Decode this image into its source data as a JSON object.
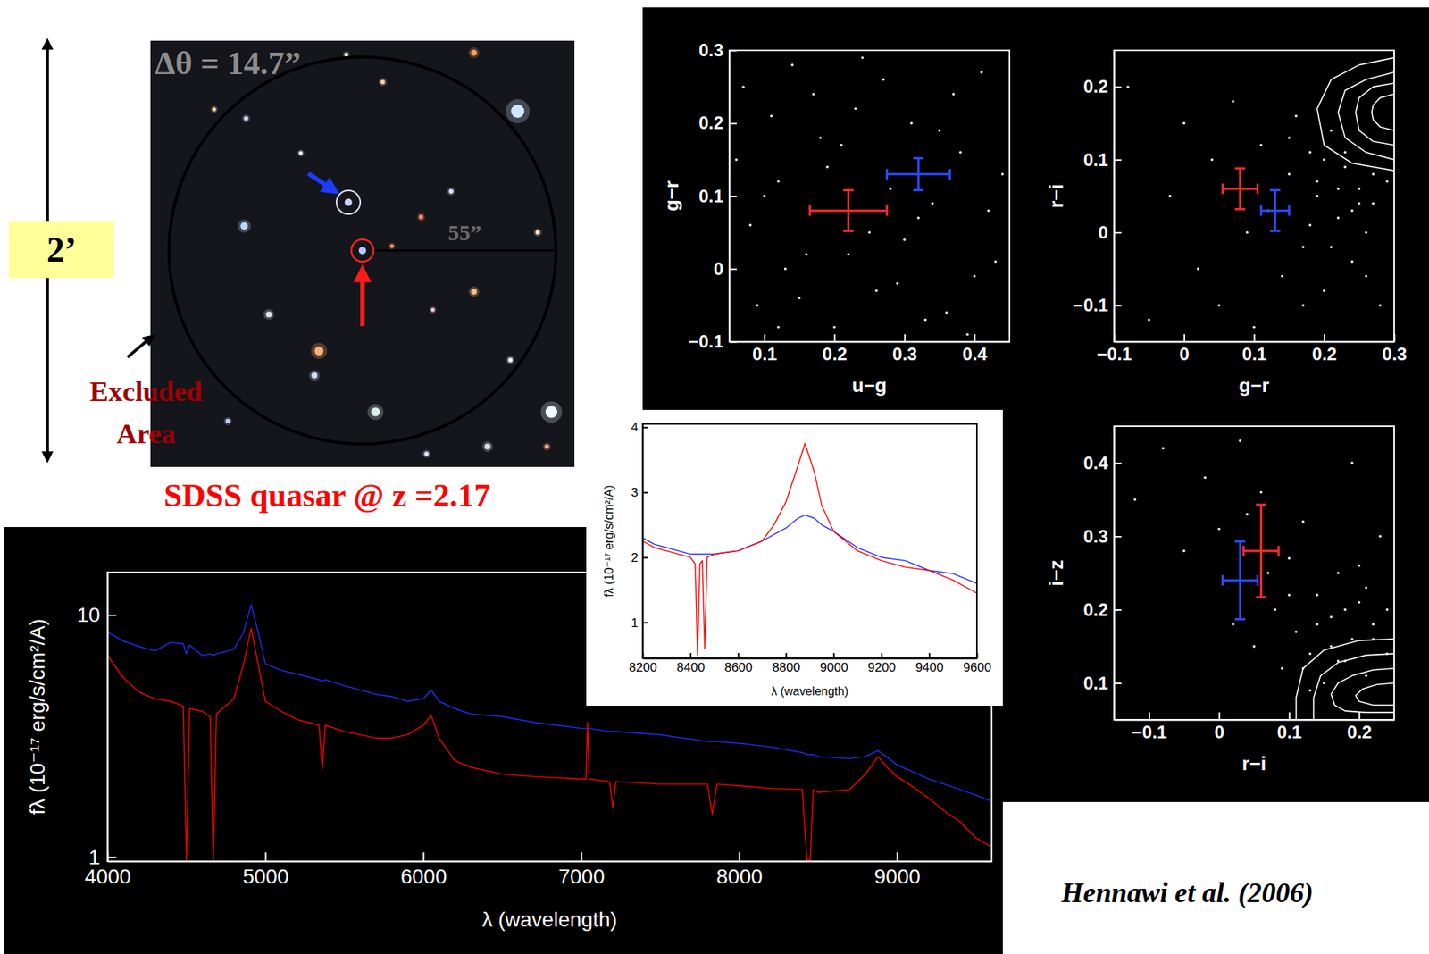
{
  "chart_data": [
    {
      "type": "scatter",
      "xlabel": "u−g",
      "ylabel": "g−r",
      "xlim": [
        0.05,
        0.45
      ],
      "ylim": [
        -0.1,
        0.3
      ],
      "xticks": [
        0.1,
        0.2,
        0.3,
        0.4
      ],
      "yticks": [
        {
          "value": -0.1,
          "label": "−0.1"
        },
        0,
        0.1,
        0.2,
        0.3
      ],
      "series": [
        {
          "type": "scatter",
          "color": "#ffffff",
          "x": [
            0.07,
            0.09,
            0.12,
            0.14,
            0.16,
            0.18,
            0.2,
            0.23,
            0.25,
            0.27,
            0.29,
            0.31,
            0.34,
            0.36,
            0.38,
            0.41,
            0.43,
            0.08,
            0.11,
            0.15,
            0.19,
            0.24,
            0.28,
            0.33,
            0.37,
            0.42,
            0.06,
            0.13,
            0.17,
            0.21,
            0.26,
            0.3,
            0.35,
            0.39,
            0.44,
            0.1,
            0.22,
            0.32,
            0.4,
            0.12
          ],
          "values": [
            0.25,
            -0.05,
            0.12,
            0.28,
            0.02,
            0.18,
            -0.08,
            0.22,
            0.05,
            0.26,
            -0.02,
            0.2,
            0.09,
            -0.06,
            0.16,
            0.27,
            0.01,
            0.06,
            0.21,
            -0.04,
            0.14,
            0.29,
            0.11,
            -0.07,
            0.24,
            0.08,
            0.15,
            0.0,
            0.24,
            0.17,
            -0.03,
            0.04,
            0.19,
            -0.09,
            0.13,
            0.1,
            0.02,
            0.07,
            -0.01,
            -0.08
          ]
        },
        {
          "type": "errorbar",
          "color": "#ff2a2a",
          "x": [
            0.22
          ],
          "values": [
            0.08
          ],
          "x_error": [
            0.055
          ],
          "error": [
            0.028
          ]
        },
        {
          "type": "errorbar",
          "color": "#2a4bff",
          "x": [
            0.32
          ],
          "values": [
            0.13
          ],
          "x_error": [
            0.045
          ],
          "error": [
            0.022
          ]
        }
      ]
    },
    {
      "type": "scatter",
      "xlabel": "g−r",
      "ylabel": "r−i",
      "xlim": [
        -0.1,
        0.3
      ],
      "ylim": [
        -0.15,
        0.25
      ],
      "xticks": [
        {
          "value": -0.1,
          "label": "−0.1"
        },
        0,
        0.1,
        0.2,
        0.3
      ],
      "yticks": [
        {
          "value": -0.1,
          "label": "−0.1"
        },
        0,
        0.1,
        0.2
      ],
      "series": [
        {
          "type": "scatter",
          "color": "#ffffff",
          "x": [
            -0.08,
            -0.05,
            -0.02,
            0.0,
            0.02,
            0.04,
            0.05,
            0.07,
            0.09,
            0.1,
            0.11,
            0.12,
            0.14,
            0.15,
            0.16,
            0.17,
            0.18,
            0.19,
            0.2,
            0.21,
            0.22,
            0.23,
            0.24,
            0.25,
            0.26,
            0.27,
            0.28,
            0.29,
            0.15,
            0.18,
            0.2,
            0.22,
            0.24,
            0.26,
            0.17,
            0.19,
            0.21,
            0.23,
            0.25,
            0.27
          ],
          "values": [
            0.2,
            -0.12,
            0.05,
            0.15,
            -0.05,
            0.1,
            -0.1,
            0.18,
            0.0,
            -0.13,
            0.12,
            0.03,
            -0.06,
            0.08,
            0.16,
            -0.02,
            0.11,
            0.05,
            -0.08,
            0.14,
            0.02,
            0.09,
            -0.04,
            0.06,
            0.0,
            0.04,
            -0.1,
            0.07,
            0.13,
            0.01,
            0.1,
            0.06,
            0.03,
            -0.06,
            -0.1,
            0.07,
            -0.02,
            0.11,
            0.04,
            0.08
          ]
        },
        {
          "type": "line",
          "color": "#ffffff",
          "x": [
            0.3,
            0.25,
            0.21,
            0.19,
            0.2,
            0.24,
            0.3
          ],
          "values": [
            0.24,
            0.23,
            0.21,
            0.17,
            0.12,
            0.095,
            0.085
          ]
        },
        {
          "type": "line",
          "color": "#ffffff",
          "x": [
            0.3,
            0.26,
            0.23,
            0.22,
            0.23,
            0.26,
            0.3
          ],
          "values": [
            0.22,
            0.21,
            0.195,
            0.165,
            0.13,
            0.11,
            0.1
          ]
        },
        {
          "type": "line",
          "color": "#ffffff",
          "x": [
            0.3,
            0.27,
            0.25,
            0.245,
            0.25,
            0.27,
            0.3
          ],
          "values": [
            0.205,
            0.2,
            0.185,
            0.165,
            0.14,
            0.125,
            0.12
          ]
        },
        {
          "type": "line",
          "color": "#ffffff",
          "x": [
            0.3,
            0.28,
            0.27,
            0.268,
            0.27,
            0.28,
            0.3
          ],
          "values": [
            0.19,
            0.185,
            0.175,
            0.165,
            0.155,
            0.145,
            0.14
          ]
        },
        {
          "type": "errorbar",
          "color": "#ff2a2a",
          "x": [
            0.08
          ],
          "values": [
            0.06
          ],
          "x_error": [
            0.025
          ],
          "error": [
            0.028
          ]
        },
        {
          "type": "errorbar",
          "color": "#2a4bff",
          "x": [
            0.13
          ],
          "values": [
            0.03
          ],
          "x_error": [
            0.02
          ],
          "error": [
            0.028
          ]
        }
      ]
    },
    {
      "type": "scatter",
      "xlabel": "r−i",
      "ylabel": "i−z",
      "xlim": [
        -0.15,
        0.25
      ],
      "ylim": [
        0.05,
        0.45
      ],
      "xticks": [
        {
          "value": -0.1,
          "label": "−0.1"
        },
        0,
        0.1,
        0.2
      ],
      "yticks": [
        0.1,
        0.2,
        0.3,
        0.4
      ],
      "series": [
        {
          "type": "scatter",
          "color": "#ffffff",
          "x": [
            -0.12,
            -0.08,
            -0.05,
            -0.02,
            0.0,
            0.02,
            0.03,
            0.05,
            0.06,
            0.08,
            0.09,
            0.1,
            0.11,
            0.12,
            0.13,
            0.14,
            0.15,
            0.16,
            0.17,
            0.18,
            0.19,
            0.2,
            0.21,
            0.22,
            0.23,
            0.24,
            0.1,
            0.12,
            0.14,
            0.16,
            0.18,
            0.2,
            0.22,
            0.07,
            0.13,
            0.17,
            0.21,
            0.24,
            0.04,
            0.19
          ],
          "values": [
            0.35,
            0.42,
            0.28,
            0.38,
            0.31,
            0.18,
            0.43,
            0.15,
            0.36,
            0.2,
            0.12,
            0.27,
            0.17,
            0.32,
            0.14,
            0.22,
            0.1,
            0.19,
            0.25,
            0.13,
            0.16,
            0.21,
            0.11,
            0.18,
            0.3,
            0.14,
            0.22,
            0.12,
            0.18,
            0.15,
            0.2,
            0.26,
            0.16,
            0.25,
            0.09,
            0.13,
            0.23,
            0.2,
            0.33,
            0.4
          ]
        },
        {
          "type": "line",
          "color": "#ffffff",
          "x": [
            0.25,
            0.2,
            0.15,
            0.12,
            0.11,
            0.11
          ],
          "values": [
            0.16,
            0.158,
            0.145,
            0.12,
            0.08,
            0.05
          ]
        },
        {
          "type": "line",
          "color": "#ffffff",
          "x": [
            0.25,
            0.21,
            0.17,
            0.145,
            0.135,
            0.135
          ],
          "values": [
            0.14,
            0.138,
            0.128,
            0.11,
            0.08,
            0.05
          ]
        },
        {
          "type": "line",
          "color": "#ffffff",
          "x": [
            0.25,
            0.22,
            0.19,
            0.17,
            0.16,
            0.165,
            0.18,
            0.21,
            0.25
          ],
          "values": [
            0.12,
            0.118,
            0.11,
            0.1,
            0.085,
            0.07,
            0.062,
            0.06,
            0.06
          ]
        },
        {
          "type": "line",
          "color": "#ffffff",
          "x": [
            0.25,
            0.225,
            0.205,
            0.195,
            0.2,
            0.22,
            0.25
          ],
          "values": [
            0.1,
            0.098,
            0.092,
            0.083,
            0.075,
            0.07,
            0.07
          ]
        },
        {
          "type": "errorbar",
          "color": "#ff2a2a",
          "x": [
            0.06
          ],
          "values": [
            0.28
          ],
          "x_error": [
            0.025
          ],
          "error": [
            0.063
          ]
        },
        {
          "type": "errorbar",
          "color": "#2a4bff",
          "x": [
            0.03
          ],
          "values": [
            0.24
          ],
          "x_error": [
            0.025
          ],
          "error": [
            0.053
          ]
        }
      ]
    },
    {
      "type": "line",
      "log": "y",
      "xlabel": "λ  (wavelength)",
      "ylabel": "fλ  (10⁻¹⁷ erg/s/cm²/A)",
      "xlim": [
        4000,
        9600
      ],
      "ylim": [
        0.96,
        15
      ],
      "xticks": [
        4000,
        5000,
        6000,
        7000,
        8000,
        9000
      ],
      "yticks": [
        1,
        10
      ],
      "x": [
        4000,
        4100,
        4200,
        4300,
        4400,
        4480,
        4500,
        4520,
        4600,
        4650,
        4670,
        4690,
        4800,
        4860,
        4910,
        4960,
        5000,
        5100,
        5200,
        5340,
        5360,
        5380,
        5500,
        5600,
        5700,
        5800,
        5900,
        6000,
        6050,
        6100,
        6200,
        6300,
        6500,
        6700,
        7000,
        7030,
        7040,
        7050,
        7180,
        7200,
        7220,
        7500,
        7800,
        7830,
        7860,
        8000,
        8200,
        8400,
        8430,
        8450,
        8470,
        8500,
        8700,
        8800,
        8880,
        8950,
        9000,
        9100,
        9200,
        9300,
        9400,
        9500,
        9600
      ],
      "series": [
        {
          "color": "#1f2fff",
          "values": [
            8.5,
            7.8,
            7.4,
            7.1,
            7.7,
            7.6,
            6.9,
            7.5,
            6.8,
            6.9,
            6.8,
            6.9,
            7.2,
            8.4,
            11.0,
            8.2,
            6.3,
            5.9,
            5.7,
            5.4,
            5.3,
            5.4,
            5.1,
            4.9,
            4.7,
            4.6,
            4.4,
            4.5,
            4.9,
            4.4,
            4.1,
            3.9,
            3.8,
            3.6,
            3.4,
            3.4,
            3.4,
            3.4,
            3.3,
            3.3,
            3.3,
            3.2,
            3.0,
            3.0,
            3.0,
            2.95,
            2.85,
            2.7,
            2.65,
            2.65,
            2.65,
            2.6,
            2.55,
            2.6,
            2.75,
            2.55,
            2.4,
            2.25,
            2.1,
            2.0,
            1.9,
            1.8,
            1.7
          ]
        },
        {
          "color": "#ff0000",
          "values": [
            6.8,
            5.5,
            4.8,
            4.5,
            4.4,
            4.2,
            0.97,
            4.1,
            4.0,
            3.8,
            0.97,
            3.9,
            4.5,
            6.2,
            8.8,
            6.0,
            4.4,
            4.0,
            3.7,
            3.5,
            2.3,
            3.5,
            3.3,
            3.2,
            3.1,
            3.1,
            3.2,
            3.5,
            3.85,
            3.1,
            2.5,
            2.35,
            2.2,
            2.15,
            2.1,
            2.1,
            3.6,
            2.1,
            2.05,
            1.6,
            2.05,
            2.0,
            2.0,
            1.5,
            2.0,
            1.97,
            1.92,
            1.9,
            0.97,
            0.97,
            1.9,
            1.85,
            1.9,
            2.2,
            2.6,
            2.3,
            2.15,
            1.95,
            1.75,
            1.55,
            1.4,
            1.2,
            1.1
          ]
        }
      ]
    },
    {
      "type": "line",
      "xlabel": "λ  (wavelength)",
      "ylabel": "fλ  (10⁻¹⁷ erg/s/cm²/A)",
      "xlim": [
        8200,
        9600
      ],
      "ylim": [
        0.45,
        4.05
      ],
      "xticks": [
        8200,
        8400,
        8600,
        8800,
        9000,
        9200,
        9400,
        9600
      ],
      "yticks": [
        1,
        2,
        3,
        4
      ],
      "x": [
        8200,
        8250,
        8300,
        8350,
        8400,
        8420,
        8430,
        8440,
        8450,
        8460,
        8470,
        8500,
        8600,
        8700,
        8750,
        8800,
        8850,
        8880,
        8920,
        8950,
        9000,
        9100,
        9200,
        9300,
        9400,
        9500,
        9600
      ],
      "series": [
        {
          "color": "#1f2fff",
          "values": [
            2.3,
            2.2,
            2.15,
            2.1,
            2.05,
            2.05,
            2.05,
            2.05,
            2.05,
            2.05,
            2.05,
            2.05,
            2.1,
            2.25,
            2.35,
            2.45,
            2.6,
            2.65,
            2.6,
            2.5,
            2.4,
            2.15,
            2.0,
            1.95,
            1.8,
            1.75,
            1.6
          ]
        },
        {
          "color": "#ff0000",
          "values": [
            2.25,
            2.15,
            2.1,
            2.05,
            2.0,
            1.9,
            0.5,
            1.9,
            1.95,
            0.6,
            2.0,
            2.05,
            2.1,
            2.25,
            2.5,
            2.85,
            3.4,
            3.75,
            3.3,
            2.8,
            2.4,
            2.1,
            1.95,
            1.85,
            1.8,
            1.65,
            1.45
          ]
        }
      ]
    }
  ],
  "sky_image": {
    "separation_label": "Δθ = 14.7”",
    "radius_label": "55”",
    "excluded_label": "Excluded Area",
    "caption": "SDSS quasar @ z =2.17",
    "scale_label": "2’"
  },
  "credit": "Hennawi et al. (2006)"
}
